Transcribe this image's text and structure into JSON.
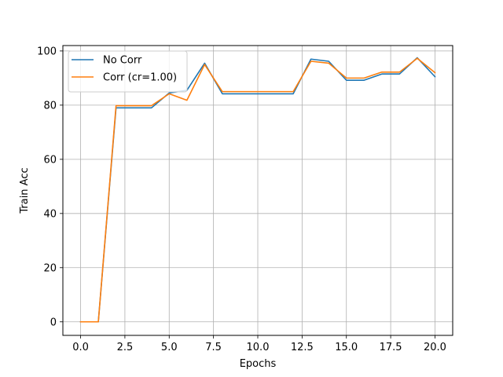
{
  "chart_data": {
    "type": "line",
    "title": "",
    "xlabel": "Epochs",
    "ylabel": "Train Acc",
    "xlim": [
      -1.0,
      21.0
    ],
    "ylim": [
      -5,
      102
    ],
    "x_ticks": [
      0.0,
      2.5,
      5.0,
      7.5,
      10.0,
      12.5,
      15.0,
      17.5,
      20.0
    ],
    "x_tick_labels": [
      "0.0",
      "2.5",
      "5.0",
      "7.5",
      "10.0",
      "12.5",
      "15.0",
      "17.5",
      "20.0"
    ],
    "y_ticks": [
      0,
      20,
      40,
      60,
      80,
      100
    ],
    "y_tick_labels": [
      "0",
      "20",
      "40",
      "60",
      "80",
      "100"
    ],
    "grid": true,
    "legend_position": "top-left",
    "x": [
      0,
      1,
      2,
      3,
      4,
      5,
      6,
      7,
      8,
      9,
      10,
      11,
      12,
      13,
      14,
      15,
      16,
      17,
      18,
      19,
      20
    ],
    "series": [
      {
        "name": "No Corr",
        "color": "#1f77b4",
        "values": [
          0,
          0,
          79,
          79,
          79,
          84.5,
          85.5,
          95.5,
          84.2,
          84.2,
          84.2,
          84.2,
          84.2,
          97,
          96.2,
          89.2,
          89.2,
          91.5,
          91.5,
          97.5,
          90.5
        ]
      },
      {
        "name": "Corr (cr=1.00)",
        "color": "#ff7f0e",
        "values": [
          0,
          0,
          79.8,
          79.8,
          79.8,
          84.2,
          81.8,
          95,
          85,
          85,
          85,
          85,
          85,
          96.2,
          95.5,
          90,
          90,
          92.2,
          92.2,
          97.3,
          92
        ]
      }
    ]
  }
}
